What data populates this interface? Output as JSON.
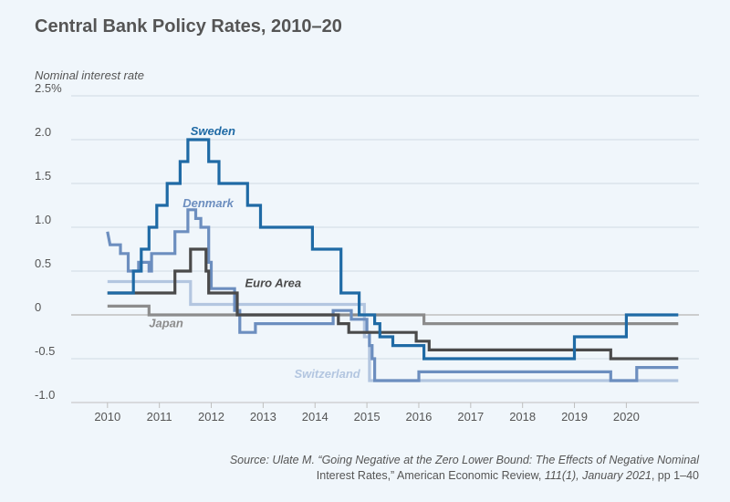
{
  "chart_data": {
    "type": "line",
    "title": "Central Bank Policy Rates, 2010–20",
    "ylabel": "Nominal interest rate",
    "xlabel": "",
    "xlim": [
      2009.3,
      2021.4
    ],
    "ylim": [
      -1.0,
      2.5
    ],
    "x_ticks": [
      {
        "value": 2010,
        "label": "2010"
      },
      {
        "value": 2011,
        "label": "2011"
      },
      {
        "value": 2012,
        "label": "2012"
      },
      {
        "value": 2013,
        "label": "2013"
      },
      {
        "value": 2014,
        "label": "2014"
      },
      {
        "value": 2015,
        "label": "2015"
      },
      {
        "value": 2016,
        "label": "2016"
      },
      {
        "value": 2017,
        "label": "2017"
      },
      {
        "value": 2018,
        "label": "2018"
      },
      {
        "value": 2019,
        "label": "2019"
      },
      {
        "value": 2020,
        "label": "2020"
      }
    ],
    "y_ticks": [
      {
        "value": 2.5,
        "label": "2.5%"
      },
      {
        "value": 2.0,
        "label": "2.0"
      },
      {
        "value": 1.5,
        "label": "1.5"
      },
      {
        "value": 1.0,
        "label": "1.0"
      },
      {
        "value": 0.5,
        "label": "0.5"
      },
      {
        "value": 0,
        "label": "0"
      },
      {
        "value": -0.5,
        "label": "-0.5"
      },
      {
        "value": -1.0,
        "label": "-1.0"
      }
    ],
    "series": [
      {
        "name": "Japan",
        "color": "#8c8c8c",
        "label_anchor": [
          2010.8,
          -0.14
        ],
        "points": [
          [
            2010.0,
            0.1
          ],
          [
            2010.8,
            0.1
          ],
          [
            2010.8,
            0.0
          ],
          [
            2016.1,
            0.0
          ],
          [
            2016.1,
            -0.1
          ],
          [
            2021.0,
            -0.1
          ]
        ]
      },
      {
        "name": "Switzerland",
        "color": "#b3c6e0",
        "label_anchor": [
          2013.6,
          -0.72
        ],
        "points": [
          [
            2010.0,
            0.38
          ],
          [
            2011.6,
            0.38
          ],
          [
            2011.6,
            0.12
          ],
          [
            2014.95,
            0.12
          ],
          [
            2014.95,
            -0.25
          ],
          [
            2015.05,
            -0.25
          ],
          [
            2015.05,
            -0.75
          ],
          [
            2021.0,
            -0.75
          ]
        ]
      },
      {
        "name": "Denmark",
        "color": "#6c8ebf",
        "label_anchor": [
          2011.45,
          1.23
        ],
        "points": [
          [
            2010.0,
            0.95
          ],
          [
            2010.05,
            0.8
          ],
          [
            2010.25,
            0.8
          ],
          [
            2010.25,
            0.7
          ],
          [
            2010.4,
            0.7
          ],
          [
            2010.4,
            0.5
          ],
          [
            2010.6,
            0.5
          ],
          [
            2010.6,
            0.6
          ],
          [
            2010.8,
            0.6
          ],
          [
            2010.8,
            0.5
          ],
          [
            2010.85,
            0.5
          ],
          [
            2010.85,
            0.7
          ],
          [
            2011.3,
            0.7
          ],
          [
            2011.3,
            0.95
          ],
          [
            2011.55,
            0.95
          ],
          [
            2011.55,
            1.2
          ],
          [
            2011.7,
            1.2
          ],
          [
            2011.7,
            1.1
          ],
          [
            2011.8,
            1.1
          ],
          [
            2011.8,
            1.0
          ],
          [
            2011.95,
            1.0
          ],
          [
            2011.95,
            0.6
          ],
          [
            2012.0,
            0.6
          ],
          [
            2012.0,
            0.3
          ],
          [
            2012.45,
            0.3
          ],
          [
            2012.45,
            0.05
          ],
          [
            2012.55,
            0.05
          ],
          [
            2012.55,
            -0.2
          ],
          [
            2012.85,
            -0.2
          ],
          [
            2012.85,
            -0.1
          ],
          [
            2014.35,
            -0.1
          ],
          [
            2014.35,
            0.05
          ],
          [
            2014.7,
            0.05
          ],
          [
            2014.7,
            -0.05
          ],
          [
            2015.0,
            -0.05
          ],
          [
            2015.0,
            -0.2
          ],
          [
            2015.05,
            -0.2
          ],
          [
            2015.05,
            -0.35
          ],
          [
            2015.1,
            -0.35
          ],
          [
            2015.1,
            -0.5
          ],
          [
            2015.15,
            -0.5
          ],
          [
            2015.15,
            -0.75
          ],
          [
            2016.0,
            -0.75
          ],
          [
            2016.0,
            -0.65
          ],
          [
            2019.7,
            -0.65
          ],
          [
            2019.7,
            -0.75
          ],
          [
            2020.2,
            -0.75
          ],
          [
            2020.2,
            -0.6
          ],
          [
            2021.0,
            -0.6
          ]
        ]
      },
      {
        "name": "Euro Area",
        "color": "#4a4a4a",
        "label_anchor": [
          2012.65,
          0.32
        ],
        "points": [
          [
            2010.0,
            0.25
          ],
          [
            2011.3,
            0.25
          ],
          [
            2011.3,
            0.5
          ],
          [
            2011.6,
            0.5
          ],
          [
            2011.6,
            0.75
          ],
          [
            2011.9,
            0.75
          ],
          [
            2011.9,
            0.5
          ],
          [
            2011.95,
            0.5
          ],
          [
            2011.95,
            0.25
          ],
          [
            2012.5,
            0.25
          ],
          [
            2012.5,
            0.0
          ],
          [
            2014.45,
            0.0
          ],
          [
            2014.45,
            -0.1
          ],
          [
            2014.65,
            -0.1
          ],
          [
            2014.65,
            -0.2
          ],
          [
            2015.95,
            -0.2
          ],
          [
            2015.95,
            -0.3
          ],
          [
            2016.2,
            -0.3
          ],
          [
            2016.2,
            -0.4
          ],
          [
            2019.7,
            -0.4
          ],
          [
            2019.7,
            -0.5
          ],
          [
            2021.0,
            -0.5
          ]
        ]
      },
      {
        "name": "Sweden",
        "color": "#1f6aa5",
        "label_anchor": [
          2011.6,
          2.05
        ],
        "points": [
          [
            2010.0,
            0.25
          ],
          [
            2010.5,
            0.25
          ],
          [
            2010.5,
            0.5
          ],
          [
            2010.65,
            0.5
          ],
          [
            2010.65,
            0.75
          ],
          [
            2010.8,
            0.75
          ],
          [
            2010.8,
            1.0
          ],
          [
            2010.95,
            1.0
          ],
          [
            2010.95,
            1.25
          ],
          [
            2011.15,
            1.25
          ],
          [
            2011.15,
            1.5
          ],
          [
            2011.4,
            1.5
          ],
          [
            2011.4,
            1.75
          ],
          [
            2011.55,
            1.75
          ],
          [
            2011.55,
            2.0
          ],
          [
            2011.95,
            2.0
          ],
          [
            2011.95,
            1.75
          ],
          [
            2012.15,
            1.75
          ],
          [
            2012.15,
            1.5
          ],
          [
            2012.7,
            1.5
          ],
          [
            2012.7,
            1.25
          ],
          [
            2012.95,
            1.25
          ],
          [
            2012.95,
            1.0
          ],
          [
            2013.95,
            1.0
          ],
          [
            2013.95,
            0.75
          ],
          [
            2014.5,
            0.75
          ],
          [
            2014.5,
            0.25
          ],
          [
            2014.85,
            0.25
          ],
          [
            2014.85,
            0.0
          ],
          [
            2015.15,
            0.0
          ],
          [
            2015.15,
            -0.1
          ],
          [
            2015.25,
            -0.1
          ],
          [
            2015.25,
            -0.25
          ],
          [
            2015.5,
            -0.25
          ],
          [
            2015.5,
            -0.35
          ],
          [
            2016.1,
            -0.35
          ],
          [
            2016.1,
            -0.5
          ],
          [
            2019.0,
            -0.5
          ],
          [
            2019.0,
            -0.25
          ],
          [
            2020.0,
            -0.25
          ],
          [
            2020.0,
            0.0
          ],
          [
            2021.0,
            0.0
          ]
        ]
      }
    ]
  },
  "source": {
    "prefix": "Source: Ulate M. “Going Negative at the Zero Lower Bound: The Effects of Negative Nominal",
    "line2_start": "Interest Rates,” American Economic Review, ",
    "line2_italic": "111(1), January 2021",
    "line2_end": ", pp 1–40"
  }
}
